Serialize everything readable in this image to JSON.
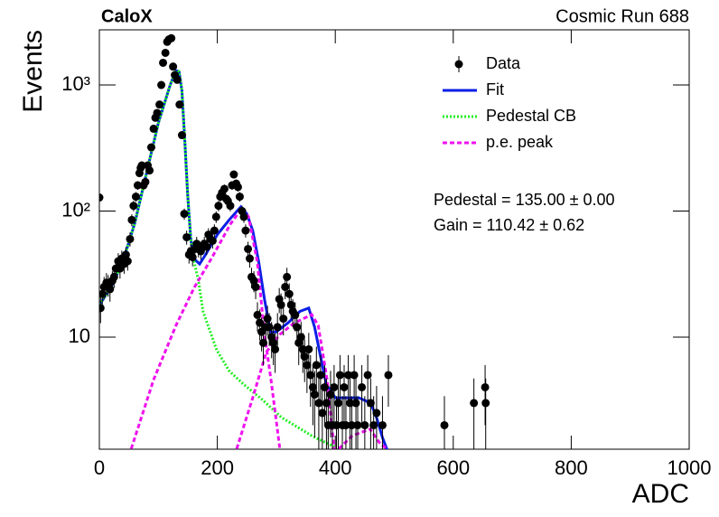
{
  "chart_data": {
    "type": "scatter",
    "title": "CaloX",
    "subtitle": "Cosmic Run 688",
    "x_label": "ADC",
    "y_label": "Events",
    "log_y": true,
    "xlim": [
      0,
      1000
    ],
    "xticks": [
      0,
      200,
      400,
      600,
      800,
      1000
    ],
    "ylim": [
      1.29,
      2740
    ],
    "yticks": [
      {
        "value": 10,
        "label": "10"
      },
      {
        "value": 100,
        "label": "10²"
      },
      {
        "value": 1000,
        "label": "10³"
      }
    ],
    "legend": "top-right",
    "annotations": [
      "Pedestal = 135.00 ± 0.00",
      "Gain = 110.42 ± 0.62"
    ],
    "series": [
      {
        "name": "Data",
        "type": "errorbar",
        "color": "#000000",
        "x": [
          0,
          2,
          5,
          8,
          12,
          15,
          18,
          22,
          25,
          28,
          32,
          35,
          38,
          42,
          45,
          48,
          52,
          55,
          58,
          62,
          65,
          68,
          70,
          72,
          75,
          78,
          82,
          85,
          88,
          92,
          95,
          98,
          102,
          105,
          108,
          112,
          115,
          118,
          122,
          125,
          128,
          132,
          136,
          140,
          144,
          148,
          152,
          155,
          158,
          162,
          165,
          168,
          172,
          175,
          178,
          182,
          185,
          188,
          192,
          195,
          198,
          202,
          205,
          208,
          212,
          215,
          218,
          222,
          225,
          228,
          232,
          235,
          238,
          242,
          245,
          248,
          252,
          255,
          258,
          262,
          265,
          268,
          272,
          275,
          278,
          282,
          285,
          288,
          292,
          295,
          298,
          302,
          305,
          308,
          312,
          315,
          318,
          322,
          325,
          328,
          332,
          335,
          338,
          342,
          345,
          348,
          352,
          355,
          358,
          362,
          365,
          368,
          372,
          375,
          378,
          382,
          385,
          388,
          392,
          395,
          398,
          402,
          405,
          408,
          412,
          415,
          418,
          422,
          425,
          428,
          432,
          435,
          438,
          445,
          450,
          455,
          460,
          465,
          470,
          480,
          490,
          585,
          635,
          654,
          655
        ],
        "values": [
          128,
          17,
          22,
          25,
          27,
          26,
          24,
          28,
          30,
          35,
          40,
          35,
          42,
          38,
          45,
          40,
          60,
          85,
          110,
          130,
          160,
          200,
          220,
          230,
          160,
          170,
          230,
          210,
          320,
          450,
          550,
          600,
          700,
          1000,
          1500,
          1800,
          2200,
          2300,
          2350,
          1400,
          1200,
          1100,
          700,
          400,
          95,
          62,
          45,
          48,
          43,
          50,
          55,
          50,
          48,
          52,
          55,
          52,
          65,
          60,
          58,
          70,
          90,
          110,
          130,
          140,
          150,
          125,
          120,
          110,
          160,
          195,
          165,
          155,
          130,
          100,
          90,
          70,
          50,
          42,
          30,
          28,
          25,
          15,
          13,
          11,
          9,
          12,
          14,
          12,
          10,
          9,
          8,
          12,
          20,
          18,
          14,
          25,
          30,
          22,
          18,
          16,
          15,
          12,
          9,
          10,
          8,
          7,
          6,
          8,
          5,
          4,
          3.5,
          6,
          3,
          5,
          2.5,
          4,
          3,
          2,
          3.5,
          2,
          4,
          2,
          3,
          5,
          2,
          4,
          2,
          5,
          3,
          2,
          5,
          3,
          2,
          4,
          2,
          5,
          3,
          2,
          2.5,
          2,
          5,
          2,
          3,
          4,
          3
        ],
        "errors": [
          11.3,
          4.1,
          4.7,
          5,
          5.2,
          5.1,
          4.9,
          5.3,
          5.5,
          5.9,
          6.3,
          5.9,
          6.5,
          6.2,
          6.7,
          6.3,
          7.7,
          9.2,
          10.5,
          11.4,
          12.6,
          14.1,
          14.8,
          15.2,
          12.6,
          13,
          15.2,
          14.5,
          17.9,
          21.2,
          23.5,
          24.5,
          26.5,
          31.6,
          38.7,
          42.4,
          46.9,
          48,
          48.5,
          37.4,
          34.6,
          33.2,
          26.5,
          20,
          9.7,
          7.9,
          6.7,
          6.9,
          6.6,
          7.1,
          7.4,
          7.1,
          6.9,
          7.2,
          7.4,
          7.2,
          8.1,
          7.7,
          7.6,
          8.4,
          9.5,
          10.5,
          11.4,
          11.8,
          12.2,
          11.2,
          11,
          10.5,
          12.6,
          14,
          12.8,
          12.4,
          11.4,
          10,
          9.5,
          8.4,
          7.1,
          6.5,
          5.5,
          5.3,
          5,
          3.9,
          3.6,
          3.3,
          3,
          3.5,
          3.7,
          3.5,
          3.2,
          3,
          2.8,
          3.5,
          4.5,
          4.2,
          3.7,
          5,
          5.5,
          4.7,
          4.2,
          4,
          3.9,
          3.5,
          3,
          3.2,
          2.8,
          2.6,
          2.4,
          2.8,
          2.2,
          2,
          1.9,
          2.4,
          1.7,
          2.2,
          1.6,
          2,
          1.7,
          1.4,
          1.9,
          1.4,
          2,
          1.4,
          1.7,
          2.2,
          1.4,
          2,
          1.4,
          2.2,
          1.7,
          1.4,
          2.2,
          1.7,
          1.4,
          2,
          1.4,
          2.2,
          1.7,
          1.4,
          1.6,
          1.4,
          2.2,
          1.4,
          1.7,
          2,
          1.7
        ]
      },
      {
        "name": "Fit",
        "type": "line",
        "color": "#0a1ee6",
        "dash": "solid",
        "x": [
          0,
          20,
          40,
          60,
          80,
          100,
          120,
          130,
          135,
          140,
          145,
          150,
          155,
          160,
          170,
          180,
          200,
          220,
          240,
          250,
          260,
          270,
          280,
          290,
          300,
          320,
          340,
          355,
          365,
          375,
          385,
          400,
          420,
          440,
          460,
          470,
          480,
          490
        ],
        "values": [
          18,
          25,
          40,
          80,
          200,
          500,
          1000,
          1300,
          1280,
          900,
          350,
          130,
          60,
          42,
          38,
          45,
          65,
          85,
          108,
          95,
          70,
          40,
          20,
          11,
          11,
          13,
          16,
          17,
          12,
          7,
          4.2,
          3.3,
          3.3,
          3.3,
          3.0,
          2.3,
          1.6,
          1.2
        ]
      },
      {
        "name": "Pedestal CB",
        "type": "line",
        "color": "#22ee22",
        "dash": "dotted",
        "x": [
          0,
          20,
          40,
          60,
          80,
          100,
          120,
          130,
          135,
          140,
          145,
          150,
          155,
          161,
          168,
          176,
          199,
          220,
          245,
          276,
          309,
          360,
          398
        ],
        "values": [
          18,
          25,
          40,
          80,
          200,
          500,
          1000,
          1300,
          1280,
          900,
          350,
          130,
          60,
          39,
          28,
          15.9,
          7.9,
          5.4,
          4.2,
          3.2,
          2.3,
          1.65,
          1.35
        ]
      },
      {
        "name": "p.e. peak",
        "type": "line",
        "color": "#ee11ee",
        "dash": "dashed",
        "x": [
          54,
          92,
          130,
          161,
          191,
          222,
          242,
          253,
          268,
          280,
          291,
          306,
          310,
          233,
          260,
          283,
          306,
          329,
          360,
          371,
          386,
          398,
          402,
          406,
          429,
          459,
          475,
          487
        ],
        "values": [
          1.3,
          4.6,
          12.4,
          24.8,
          42.8,
          78.6,
          106,
          90,
          39,
          10.5,
          4.6,
          1.3,
          null,
          1.3,
          3.3,
          7.6,
          10.5,
          12.8,
          15.1,
          12.4,
          4.6,
          1.3,
          null,
          1.3,
          1.65,
          1.86,
          1.45,
          1.3
        ]
      }
    ]
  }
}
